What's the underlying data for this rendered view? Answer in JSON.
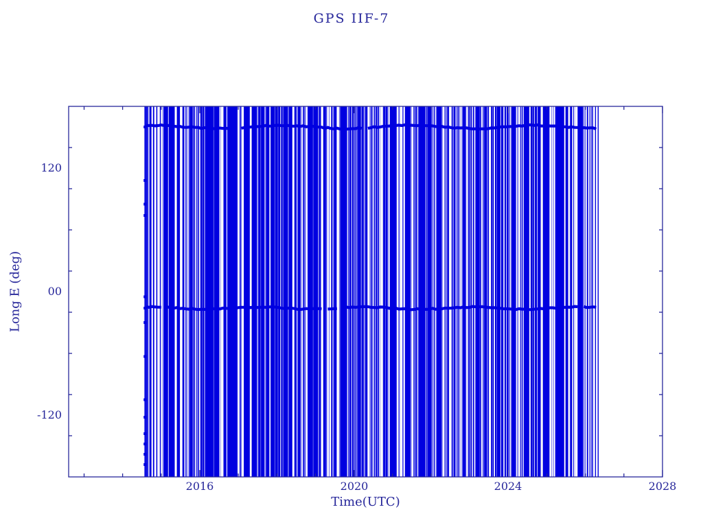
{
  "page": {
    "background": "#ffffff"
  },
  "chart_data": {
    "type": "line",
    "title": "GPS IIF-7",
    "xlabel": "Time(UTC)",
    "ylabel": "Long E (deg)",
    "xlim": [
      2012.6,
      2028
    ],
    "ylim": [
      -180,
      180
    ],
    "grid": false,
    "legend_position": "none",
    "axis_color": "#26269a",
    "data_color": "#0000e0",
    "background_color": "#ffffff",
    "x_ticks": [
      {
        "value": 2016,
        "label": "2016"
      },
      {
        "value": 2020,
        "label": "2020"
      },
      {
        "value": 2024,
        "label": "2024"
      },
      {
        "value": 2028,
        "label": "2028"
      }
    ],
    "x_minor_step": 1,
    "y_ticks": [
      {
        "value": 120,
        "label": "120"
      },
      {
        "value": 0,
        "label": "00"
      },
      {
        "value": -120,
        "label": "-120"
      }
    ],
    "y_minor_step": 40,
    "series": [
      {
        "name": "longitude-sweep",
        "description": "Dense vertical sweep of longitude values wrapping through full -180..180 range",
        "x_start": 2014.55,
        "solid_start": 2015.0,
        "solid_end": 2026.2,
        "x_end": 2026.35,
        "y_min": -180,
        "y_max": 180,
        "trail_lines": [
          2026.25,
          2026.32
        ]
      }
    ],
    "dwell_bands": [
      {
        "y": 160,
        "x_start": 2014.6,
        "x_end": 2026.35,
        "wiggle_deg": 2.6
      },
      {
        "y": -16,
        "x_start": 2014.6,
        "x_end": 2026.35,
        "wiggle_deg": 1.8
      }
    ],
    "start_marker_year": 2014.58,
    "start_markers_y": [
      160,
      108,
      85,
      74,
      -5,
      -16,
      -30,
      -63,
      -105,
      -122,
      -138,
      -148,
      -158,
      -168
    ],
    "gap_years": [
      2014.75,
      2014.82,
      2014.9,
      2015.35,
      2015.5,
      2016.55,
      2016.98,
      2017.08,
      2017.3,
      2018.4,
      2018.75,
      2019.15,
      2019.3,
      2019.55,
      2020.35,
      2020.7,
      2020.9,
      2021.2,
      2021.5,
      2022.3,
      2022.5,
      2023.3,
      2023.5,
      2024.27,
      2024.55,
      2024.85,
      2025.07,
      2025.45,
      2025.74,
      2026.0
    ],
    "hairline_count": 200
  }
}
